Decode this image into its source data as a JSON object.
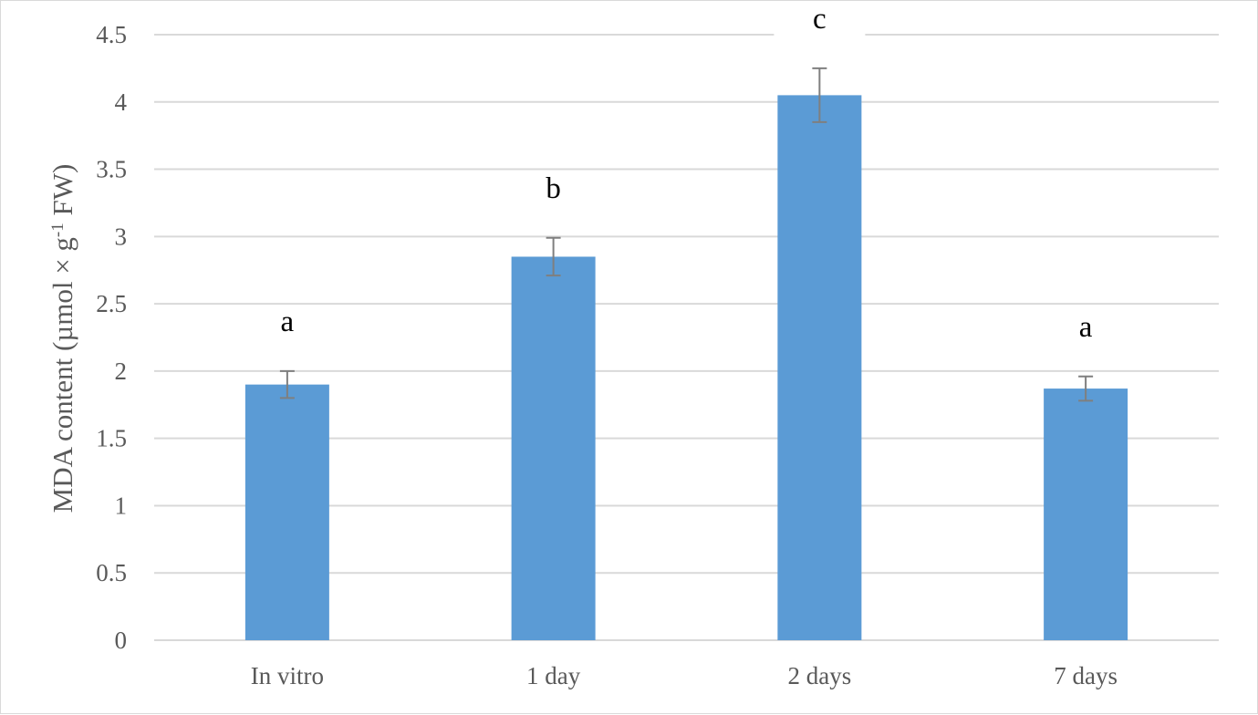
{
  "chart_data": {
    "type": "bar",
    "categories": [
      "In vitro",
      "1 day",
      "2 days",
      "7 days"
    ],
    "values": [
      1.9,
      2.85,
      4.05,
      1.87
    ],
    "errors": [
      0.1,
      0.14,
      0.2,
      0.09
    ],
    "significance_letters": [
      "a",
      "b",
      "c",
      "a"
    ],
    "title": "",
    "xlabel": "",
    "ylabel": {
      "prefix": "MDA content (µmol × g",
      "superscript": "-1",
      "suffix": " FW)"
    },
    "ylim": [
      0,
      4.5
    ],
    "yticks": [
      "0",
      "0.5",
      "1",
      "1.5",
      "2",
      "2.5",
      "3",
      "3.5",
      "4",
      "4.5"
    ],
    "grid": true,
    "legend": "none",
    "colors": {
      "bar": "#5b9bd5",
      "error_bar": "#7f7f7f",
      "grid": "#d9d9d9",
      "tick_text": "#595959",
      "letter_text": "#000000"
    }
  }
}
